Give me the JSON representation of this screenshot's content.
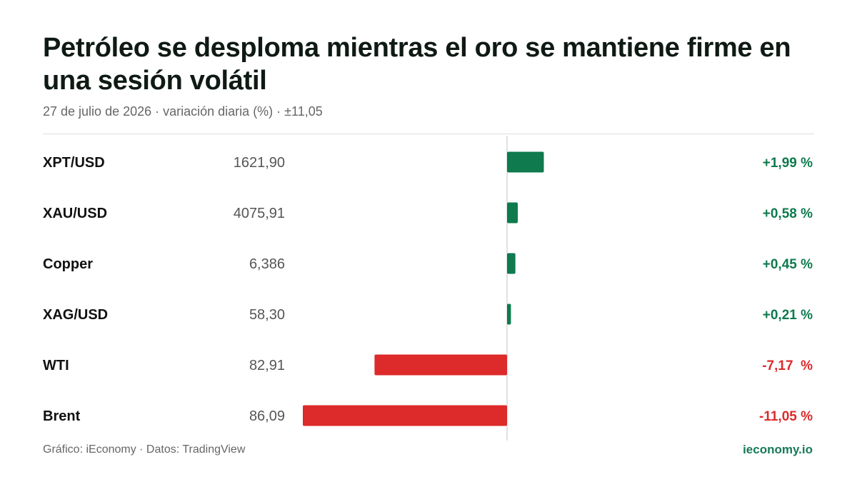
{
  "header": {
    "title": "Petróleo se desploma mientras el oro se mantiene firme en una sesión volátil",
    "subtitle": "27 de julio de 2026 · variación diaria (%) · ±11,05"
  },
  "footer": {
    "source": "Gráfico: iEconomy · Datos: TradingView",
    "brand": "ieconomy.io"
  },
  "colors": {
    "positive": "#0e7a4e",
    "negative": "#dd2a2a",
    "brand": "#167a57"
  },
  "chart_data": {
    "type": "bar",
    "orientation": "horizontal",
    "xlim": [
      -11.05,
      11.05
    ],
    "rows": [
      {
        "name": "XPT/USD",
        "price": "1621,90",
        "change": 1.99,
        "change_label": "+1,99 %"
      },
      {
        "name": "XAU/USD",
        "price": "4075,91",
        "change": 0.58,
        "change_label": "+0,58 %"
      },
      {
        "name": "Copper",
        "price": "6,386",
        "change": 0.45,
        "change_label": "+0,45 %"
      },
      {
        "name": "XAG/USD",
        "price": "58,30",
        "change": 0.21,
        "change_label": "+0,21 %"
      },
      {
        "name": "WTI",
        "price": "82,91",
        "change": -7.17,
        "change_label": "-7,17  %"
      },
      {
        "name": "Brent",
        "price": "86,09",
        "change": -11.05,
        "change_label": "-11,05 %"
      }
    ]
  }
}
